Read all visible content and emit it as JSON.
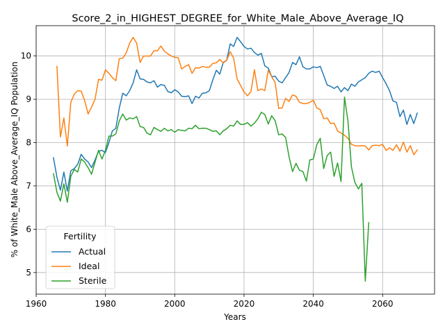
{
  "chart_data": {
    "type": "line",
    "title": "Score_2_in_HIGHEST_DEGREE_for_White_Male_Above_Average_IQ",
    "xlabel": "Years",
    "ylabel": "% of White_Male Above_Average_IQ Population",
    "xlim": [
      1960,
      2075
    ],
    "ylim": [
      4.5,
      10.7
    ],
    "xticks": [
      1960,
      1980,
      2000,
      2020,
      2040,
      2060
    ],
    "yticks": [
      5,
      6,
      7,
      8,
      9,
      10
    ],
    "grid": true,
    "legend": {
      "title": "Fertility",
      "placement": "lower-left"
    },
    "series": [
      {
        "name": "Actual",
        "color": "#1f77b4",
        "points": [
          [
            1965,
            7.65
          ],
          [
            1966,
            7.2
          ],
          [
            1967,
            6.9
          ],
          [
            1968,
            7.32
          ],
          [
            1969,
            6.88
          ],
          [
            1970,
            7.35
          ],
          [
            1971,
            7.4
          ],
          [
            1972,
            7.5
          ],
          [
            1973,
            7.73
          ],
          [
            1974,
            7.62
          ],
          [
            1975,
            7.55
          ],
          [
            1976,
            7.42
          ],
          [
            1977,
            7.6
          ],
          [
            1978,
            7.8
          ],
          [
            1979,
            7.82
          ],
          [
            1980,
            7.77
          ],
          [
            1981,
            8.0
          ],
          [
            1982,
            8.27
          ],
          [
            1983,
            8.33
          ],
          [
            1984,
            8.8
          ],
          [
            1985,
            9.14
          ],
          [
            1986,
            9.08
          ],
          [
            1987,
            9.2
          ],
          [
            1988,
            9.38
          ],
          [
            1989,
            9.68
          ],
          [
            1990,
            9.47
          ],
          [
            1991,
            9.46
          ],
          [
            1992,
            9.4
          ],
          [
            1993,
            9.38
          ],
          [
            1994,
            9.43
          ],
          [
            1995,
            9.28
          ],
          [
            1996,
            9.34
          ],
          [
            1997,
            9.32
          ],
          [
            1998,
            9.18
          ],
          [
            1999,
            9.15
          ],
          [
            2000,
            9.22
          ],
          [
            2001,
            9.17
          ],
          [
            2002,
            9.07
          ],
          [
            2003,
            9.06
          ],
          [
            2004,
            9.08
          ],
          [
            2005,
            8.9
          ],
          [
            2006,
            9.07
          ],
          [
            2007,
            9.03
          ],
          [
            2008,
            9.14
          ],
          [
            2009,
            9.15
          ],
          [
            2010,
            9.2
          ],
          [
            2011,
            9.45
          ],
          [
            2012,
            9.67
          ],
          [
            2013,
            9.58
          ],
          [
            2014,
            9.85
          ],
          [
            2015,
            9.9
          ],
          [
            2016,
            10.28
          ],
          [
            2017,
            10.22
          ],
          [
            2018,
            10.43
          ],
          [
            2019,
            10.33
          ],
          [
            2020,
            10.22
          ],
          [
            2021,
            10.16
          ],
          [
            2022,
            10.18
          ],
          [
            2023,
            10.08
          ],
          [
            2024,
            10.02
          ],
          [
            2025,
            10.06
          ],
          [
            2026,
            9.77
          ],
          [
            2027,
            9.72
          ],
          [
            2028,
            9.52
          ],
          [
            2029,
            9.53
          ],
          [
            2030,
            9.42
          ],
          [
            2031,
            9.38
          ],
          [
            2032,
            9.5
          ],
          [
            2033,
            9.62
          ],
          [
            2034,
            9.85
          ],
          [
            2035,
            9.8
          ],
          [
            2036,
            9.98
          ],
          [
            2037,
            9.75
          ],
          [
            2038,
            9.7
          ],
          [
            2039,
            9.7
          ],
          [
            2040,
            9.75
          ],
          [
            2041,
            9.73
          ],
          [
            2042,
            9.76
          ],
          [
            2043,
            9.55
          ],
          [
            2044,
            9.33
          ],
          [
            2045,
            9.3
          ],
          [
            2046,
            9.25
          ],
          [
            2047,
            9.3
          ],
          [
            2048,
            9.17
          ],
          [
            2049,
            9.27
          ],
          [
            2050,
            9.2
          ],
          [
            2051,
            9.35
          ],
          [
            2052,
            9.3
          ],
          [
            2053,
            9.4
          ],
          [
            2054,
            9.45
          ],
          [
            2055,
            9.5
          ],
          [
            2056,
            9.6
          ],
          [
            2057,
            9.65
          ],
          [
            2058,
            9.62
          ],
          [
            2059,
            9.65
          ],
          [
            2060,
            9.5
          ],
          [
            2061,
            9.36
          ],
          [
            2062,
            9.2
          ],
          [
            2063,
            8.96
          ],
          [
            2064,
            8.93
          ],
          [
            2065,
            8.6
          ],
          [
            2066,
            8.75
          ],
          [
            2067,
            8.42
          ],
          [
            2068,
            8.65
          ],
          [
            2069,
            8.44
          ],
          [
            2070,
            8.68
          ]
        ]
      },
      {
        "name": "Ideal",
        "color": "#ff7f0e",
        "points": [
          [
            1966,
            9.76
          ],
          [
            1967,
            8.13
          ],
          [
            1968,
            8.57
          ],
          [
            1969,
            7.92
          ],
          [
            1970,
            8.93
          ],
          [
            1971,
            9.12
          ],
          [
            1972,
            9.2
          ],
          [
            1973,
            9.19
          ],
          [
            1974,
            8.97
          ],
          [
            1975,
            8.66
          ],
          [
            1976,
            8.82
          ],
          [
            1977,
            9.0
          ],
          [
            1978,
            9.46
          ],
          [
            1979,
            9.44
          ],
          [
            1980,
            9.68
          ],
          [
            1981,
            9.6
          ],
          [
            1982,
            9.5
          ],
          [
            1983,
            9.43
          ],
          [
            1984,
            9.94
          ],
          [
            1985,
            9.95
          ],
          [
            1986,
            10.07
          ],
          [
            1987,
            10.3
          ],
          [
            1988,
            10.43
          ],
          [
            1989,
            10.3
          ],
          [
            1990,
            9.85
          ],
          [
            1991,
            10.0
          ],
          [
            1992,
            10.0
          ],
          [
            1993,
            10.0
          ],
          [
            1994,
            10.12
          ],
          [
            1995,
            10.12
          ],
          [
            1996,
            10.23
          ],
          [
            1997,
            10.11
          ],
          [
            1998,
            10.05
          ],
          [
            1999,
            10.0
          ],
          [
            2000,
            9.97
          ],
          [
            2001,
            9.96
          ],
          [
            2002,
            9.7
          ],
          [
            2003,
            9.76
          ],
          [
            2004,
            9.8
          ],
          [
            2005,
            9.6
          ],
          [
            2006,
            9.73
          ],
          [
            2007,
            9.72
          ],
          [
            2008,
            9.76
          ],
          [
            2009,
            9.74
          ],
          [
            2010,
            9.74
          ],
          [
            2011,
            9.83
          ],
          [
            2012,
            9.84
          ],
          [
            2013,
            9.92
          ],
          [
            2014,
            9.84
          ],
          [
            2015,
            9.9
          ],
          [
            2016,
            10.1
          ],
          [
            2017,
            9.95
          ],
          [
            2018,
            9.47
          ],
          [
            2019,
            9.32
          ],
          [
            2020,
            9.17
          ],
          [
            2021,
            9.08
          ],
          [
            2022,
            9.18
          ],
          [
            2023,
            9.68
          ],
          [
            2024,
            9.2
          ],
          [
            2025,
            9.24
          ],
          [
            2026,
            9.2
          ],
          [
            2027,
            9.67
          ],
          [
            2028,
            9.52
          ],
          [
            2029,
            9.38
          ],
          [
            2030,
            8.79
          ],
          [
            2031,
            8.8
          ],
          [
            2032,
            9.02
          ],
          [
            2033,
            8.95
          ],
          [
            2034,
            9.1
          ],
          [
            2035,
            9.07
          ],
          [
            2036,
            8.93
          ],
          [
            2037,
            8.9
          ],
          [
            2038,
            8.9
          ],
          [
            2039,
            8.93
          ],
          [
            2040,
            8.98
          ],
          [
            2041,
            8.8
          ],
          [
            2042,
            8.76
          ],
          [
            2043,
            8.55
          ],
          [
            2044,
            8.57
          ],
          [
            2045,
            8.44
          ],
          [
            2046,
            8.45
          ],
          [
            2047,
            8.27
          ],
          [
            2048,
            8.22
          ],
          [
            2049,
            8.17
          ],
          [
            2050,
            8.1
          ],
          [
            2051,
            7.96
          ],
          [
            2052,
            7.93
          ],
          [
            2053,
            7.92
          ],
          [
            2054,
            7.93
          ],
          [
            2055,
            7.92
          ],
          [
            2056,
            7.83
          ],
          [
            2057,
            7.93
          ],
          [
            2058,
            7.94
          ],
          [
            2059,
            7.93
          ],
          [
            2060,
            7.96
          ],
          [
            2061,
            7.82
          ],
          [
            2062,
            7.88
          ],
          [
            2063,
            7.82
          ],
          [
            2064,
            7.95
          ],
          [
            2065,
            7.8
          ],
          [
            2066,
            8.01
          ],
          [
            2067,
            7.78
          ],
          [
            2068,
            7.93
          ],
          [
            2069,
            7.72
          ],
          [
            2070,
            7.83
          ]
        ]
      },
      {
        "name": "Sterile",
        "color": "#2ca02c",
        "points": [
          [
            1965,
            7.28
          ],
          [
            1966,
            6.85
          ],
          [
            1967,
            6.65
          ],
          [
            1968,
            7.05
          ],
          [
            1969,
            6.62
          ],
          [
            1970,
            7.22
          ],
          [
            1971,
            7.38
          ],
          [
            1972,
            7.32
          ],
          [
            1973,
            7.62
          ],
          [
            1974,
            7.55
          ],
          [
            1975,
            7.42
          ],
          [
            1976,
            7.27
          ],
          [
            1977,
            7.55
          ],
          [
            1978,
            7.82
          ],
          [
            1979,
            7.62
          ],
          [
            1980,
            7.82
          ],
          [
            1981,
            8.15
          ],
          [
            1982,
            8.15
          ],
          [
            1983,
            8.2
          ],
          [
            1984,
            8.5
          ],
          [
            1985,
            8.66
          ],
          [
            1986,
            8.52
          ],
          [
            1987,
            8.57
          ],
          [
            1988,
            8.55
          ],
          [
            1989,
            8.6
          ],
          [
            1990,
            8.37
          ],
          [
            1991,
            8.35
          ],
          [
            1992,
            8.22
          ],
          [
            1993,
            8.18
          ],
          [
            1994,
            8.35
          ],
          [
            1995,
            8.3
          ],
          [
            1996,
            8.26
          ],
          [
            1997,
            8.33
          ],
          [
            1998,
            8.27
          ],
          [
            1999,
            8.3
          ],
          [
            2000,
            8.24
          ],
          [
            2001,
            8.3
          ],
          [
            2002,
            8.28
          ],
          [
            2003,
            8.27
          ],
          [
            2004,
            8.33
          ],
          [
            2005,
            8.32
          ],
          [
            2006,
            8.4
          ],
          [
            2007,
            8.32
          ],
          [
            2008,
            8.33
          ],
          [
            2009,
            8.33
          ],
          [
            2010,
            8.3
          ],
          [
            2011,
            8.26
          ],
          [
            2012,
            8.27
          ],
          [
            2013,
            8.18
          ],
          [
            2014,
            8.27
          ],
          [
            2015,
            8.32
          ],
          [
            2016,
            8.4
          ],
          [
            2017,
            8.38
          ],
          [
            2018,
            8.5
          ],
          [
            2019,
            8.42
          ],
          [
            2020,
            8.42
          ],
          [
            2021,
            8.46
          ],
          [
            2022,
            8.38
          ],
          [
            2023,
            8.45
          ],
          [
            2024,
            8.55
          ],
          [
            2025,
            8.7
          ],
          [
            2026,
            8.65
          ],
          [
            2027,
            8.43
          ],
          [
            2028,
            8.62
          ],
          [
            2029,
            8.5
          ],
          [
            2030,
            8.18
          ],
          [
            2031,
            8.2
          ],
          [
            2032,
            8.12
          ],
          [
            2033,
            7.67
          ],
          [
            2034,
            7.33
          ],
          [
            2035,
            7.52
          ],
          [
            2036,
            7.36
          ],
          [
            2037,
            7.33
          ],
          [
            2038,
            7.11
          ],
          [
            2039,
            7.6
          ],
          [
            2040,
            7.62
          ],
          [
            2041,
            7.95
          ],
          [
            2042,
            8.1
          ],
          [
            2043,
            7.4
          ],
          [
            2044,
            7.7
          ],
          [
            2045,
            7.78
          ],
          [
            2046,
            7.22
          ],
          [
            2047,
            7.53
          ],
          [
            2048,
            7.1
          ],
          [
            2049,
            9.05
          ],
          [
            2050,
            8.5
          ],
          [
            2051,
            7.44
          ],
          [
            2052,
            7.08
          ],
          [
            2053,
            6.93
          ],
          [
            2054,
            7.06
          ],
          [
            2055,
            4.8
          ],
          [
            2056,
            6.15
          ]
        ]
      }
    ]
  }
}
